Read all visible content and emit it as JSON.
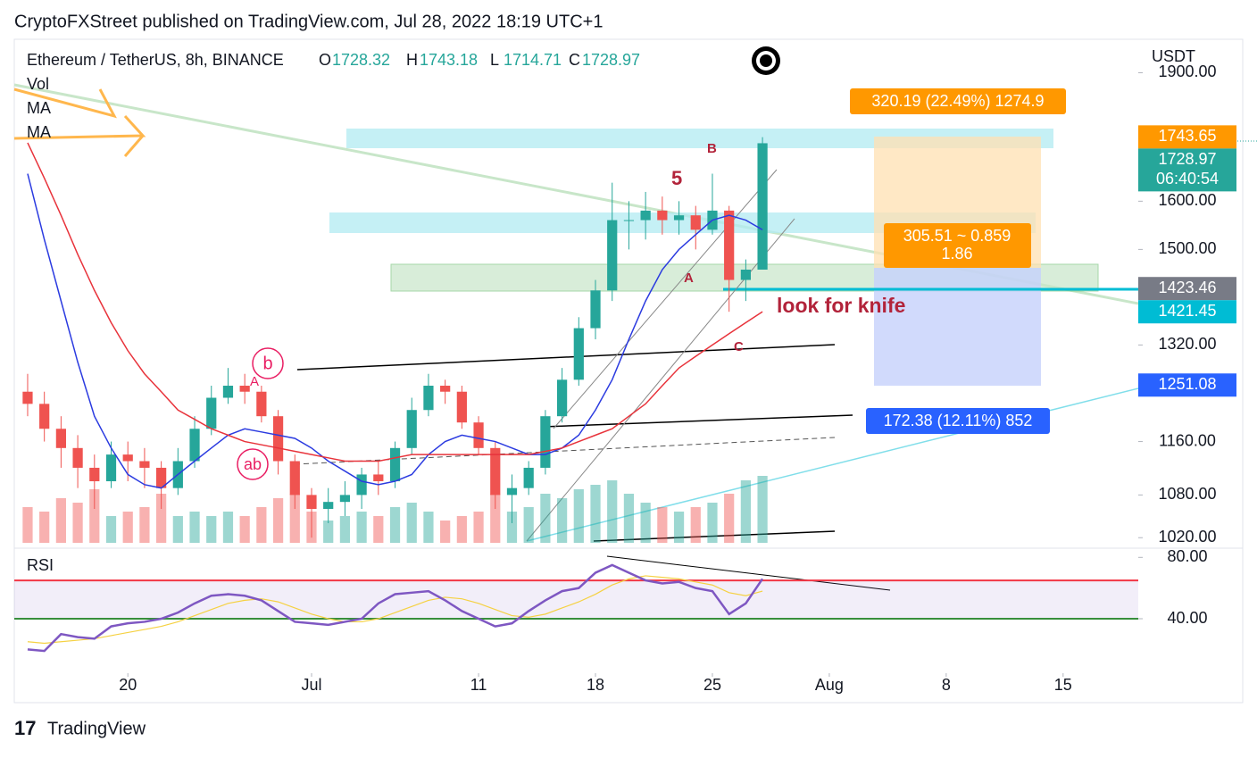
{
  "header": {
    "text": "CryptoFXStreet published on TradingView.com, Jul 28, 2022 18:19 UTC+1"
  },
  "footer": {
    "brand": "TradingView"
  },
  "chart_data": [
    {
      "type": "candlestick",
      "title": "Ethereum / TetherUS, 8h, BINANCE",
      "ohlc_legend": [
        {
          "label": "O",
          "value": 1728.32
        },
        {
          "label": "H",
          "value": 1743.18
        },
        {
          "label": "L",
          "value": 1714.71
        },
        {
          "label": "C",
          "value": 1728.97
        }
      ],
      "volume_label": "Vol",
      "currency": "USDT",
      "x": [
        14,
        15,
        16,
        17,
        18,
        19,
        20,
        21,
        22,
        23,
        24,
        25,
        26,
        27,
        28,
        29,
        30,
        31,
        32,
        33,
        34,
        35,
        36,
        37,
        38,
        39,
        40,
        41,
        42,
        43,
        44,
        45,
        46,
        47,
        48,
        49,
        50,
        51,
        52,
        53,
        54,
        55,
        56,
        57,
        58
      ],
      "xlim": [
        13.2,
        80.5
      ],
      "xticks": [
        20,
        {
          "value": 31,
          "label": "Jul"
        },
        {
          "value": 41,
          "label": "11"
        },
        {
          "value": 48,
          "label": "18"
        },
        {
          "value": 55,
          "label": "25"
        },
        {
          "value": 62,
          "label": "Aug"
        },
        {
          "value": 69,
          "label": "8"
        },
        {
          "value": 76,
          "label": "15"
        }
      ],
      "open": [
        1240,
        1220,
        1180,
        1150,
        1120,
        1100,
        1140,
        1130,
        1120,
        1090,
        1130,
        1180,
        1230,
        1250,
        1240,
        1200,
        1130,
        1080,
        1060,
        1070,
        1080,
        1110,
        1100,
        1150,
        1210,
        1250,
        1240,
        1190,
        1150,
        1080,
        1090,
        1120,
        1200,
        1260,
        1350,
        1420,
        1560,
        1560,
        1580,
        1560,
        1570,
        1540,
        1580,
        1440,
        1460
      ],
      "high": [
        1270,
        1240,
        1200,
        1170,
        1140,
        1160,
        1160,
        1150,
        1130,
        1150,
        1200,
        1250,
        1280,
        1270,
        1250,
        1210,
        1140,
        1090,
        1090,
        1100,
        1120,
        1130,
        1160,
        1230,
        1270,
        1260,
        1250,
        1200,
        1160,
        1110,
        1130,
        1210,
        1280,
        1370,
        1440,
        1640,
        1600,
        1620,
        1610,
        1600,
        1590,
        1660,
        1590,
        1480,
        1743
      ],
      "low": [
        1200,
        1160,
        1120,
        1090,
        1060,
        1090,
        1100,
        1090,
        1060,
        1080,
        1120,
        1170,
        1220,
        1220,
        1190,
        1110,
        1060,
        1020,
        1040,
        1050,
        1060,
        1080,
        1090,
        1140,
        1200,
        1220,
        1180,
        1140,
        1060,
        1040,
        1080,
        1110,
        1190,
        1250,
        1330,
        1400,
        1500,
        1520,
        1530,
        1530,
        1500,
        1530,
        1380,
        1400,
        1460
      ],
      "close": [
        1220,
        1180,
        1150,
        1120,
        1100,
        1140,
        1130,
        1120,
        1090,
        1130,
        1180,
        1230,
        1250,
        1240,
        1200,
        1130,
        1080,
        1060,
        1070,
        1080,
        1110,
        1100,
        1150,
        1210,
        1250,
        1240,
        1190,
        1150,
        1080,
        1090,
        1120,
        1200,
        1260,
        1350,
        1420,
        1560,
        1560,
        1580,
        1560,
        1570,
        1540,
        1580,
        1440,
        1460,
        1729
      ],
      "volume": [
        40,
        35,
        50,
        45,
        60,
        30,
        35,
        40,
        55,
        30,
        35,
        30,
        35,
        30,
        40,
        50,
        55,
        35,
        25,
        30,
        35,
        30,
        40,
        45,
        35,
        25,
        30,
        35,
        55,
        35,
        40,
        55,
        50,
        60,
        65,
        70,
        55,
        45,
        40,
        35,
        40,
        45,
        55,
        70,
        75
      ],
      "up_color": "#26a69a",
      "down_color": "#ef5350",
      "series": [
        {
          "name": "MA",
          "color": "#2b3be0",
          "values": [
            1660,
            1520,
            1400,
            1290,
            1200,
            1150,
            1110,
            1095,
            1090,
            1110,
            1130,
            1150,
            1170,
            1180,
            1175,
            1170,
            1165,
            1150,
            1130,
            1115,
            1100,
            1095,
            1100,
            1110,
            1140,
            1160,
            1170,
            1165,
            1160,
            1150,
            1140,
            1140,
            1150,
            1170,
            1210,
            1260,
            1330,
            1400,
            1460,
            1500,
            1530,
            1560,
            1570,
            1560,
            1540
          ]
        },
        {
          "name": "MA",
          "color": "#e8333b",
          "values": [
            1730,
            1650,
            1570,
            1490,
            1420,
            1360,
            1310,
            1270,
            1240,
            1210,
            1195,
            1180,
            1170,
            1160,
            1155,
            1150,
            1145,
            1140,
            1135,
            1130,
            1130,
            1130,
            1135,
            1140,
            1140,
            1140,
            1140,
            1140,
            1140,
            1140,
            1140,
            1145,
            1150,
            1160,
            1170,
            1180,
            1200,
            1220,
            1250,
            1280,
            1300,
            1320,
            1340,
            1360,
            1380
          ]
        }
      ],
      "log_scale": true,
      "ylim": [
        1013,
        1987
      ],
      "yticks": [
        {
          "value": 1020,
          "label": "1020.00"
        },
        {
          "value": 1080,
          "label": "1080.00"
        },
        {
          "value": 1160,
          "label": "1160.00"
        },
        {
          "value": 1320,
          "label": "1320.00"
        },
        {
          "value": 1500,
          "label": "1500.00"
        },
        {
          "value": 1600,
          "label": "1600.00"
        },
        {
          "value": 1900,
          "label": "1900.00"
        }
      ],
      "price_labels": [
        {
          "value": 1743.65,
          "color": "#ff9800"
        },
        {
          "value": 1728.97,
          "color": "#26a69a",
          "countdown": "06:40:54"
        },
        {
          "value": 1423.46,
          "color": "#787b86"
        },
        {
          "value": 1421.45,
          "color": "#00bcd4"
        },
        {
          "value": 1251.08,
          "color": "#2962ff"
        }
      ],
      "annotations": {
        "wave_5": "5",
        "wave_b": "B",
        "wave_a": "A",
        "wave_c": "C",
        "wave_a_early": "A",
        "wave_b_circle": "b",
        "wave_ab_circle": "ab",
        "note": "look for knife",
        "range_top": "320.19 (22.49%) 1274.9",
        "risk_reward_1": "305.51 ~ 0.859",
        "risk_reward_2": "1.86",
        "range_bottom": "172.38 (12.11%) 852"
      }
    },
    {
      "type": "line",
      "title": "RSI",
      "x": [
        14,
        15,
        16,
        17,
        18,
        19,
        20,
        21,
        22,
        23,
        24,
        25,
        26,
        27,
        28,
        29,
        30,
        31,
        32,
        33,
        34,
        35,
        36,
        37,
        38,
        39,
        40,
        41,
        42,
        43,
        44,
        45,
        46,
        47,
        48,
        49,
        50,
        51,
        52,
        53,
        54,
        55,
        56,
        57,
        58
      ],
      "xlim": [
        13.2,
        80.5
      ],
      "ylim": [
        1,
        86
      ],
      "yticks": [
        {
          "value": 80,
          "label": "80.00"
        },
        {
          "value": 40,
          "label": "40.00"
        }
      ],
      "bands": [
        {
          "value": 65,
          "color": "#f23645"
        },
        {
          "value": 40,
          "color": "#388e3c"
        }
      ],
      "series": [
        {
          "color": "#7e57c2",
          "values": [
            20,
            19,
            30,
            28,
            27,
            35,
            37,
            38,
            40,
            44,
            50,
            55,
            56,
            55,
            52,
            45,
            38,
            37,
            36,
            38,
            40,
            50,
            56,
            57,
            58,
            52,
            45,
            40,
            35,
            37,
            45,
            52,
            58,
            60,
            70,
            75,
            70,
            65,
            63,
            64,
            60,
            58,
            43,
            50,
            66
          ]
        },
        {
          "color": "#f5d142",
          "values": [
            25,
            24,
            25,
            26,
            27,
            29,
            31,
            33,
            35,
            38,
            42,
            46,
            50,
            52,
            53,
            51,
            47,
            43,
            40,
            38,
            38,
            40,
            44,
            48,
            52,
            54,
            53,
            50,
            46,
            42,
            41,
            43,
            47,
            51,
            56,
            62,
            66,
            68,
            67,
            66,
            64,
            62,
            57,
            55,
            58
          ]
        }
      ]
    }
  ]
}
